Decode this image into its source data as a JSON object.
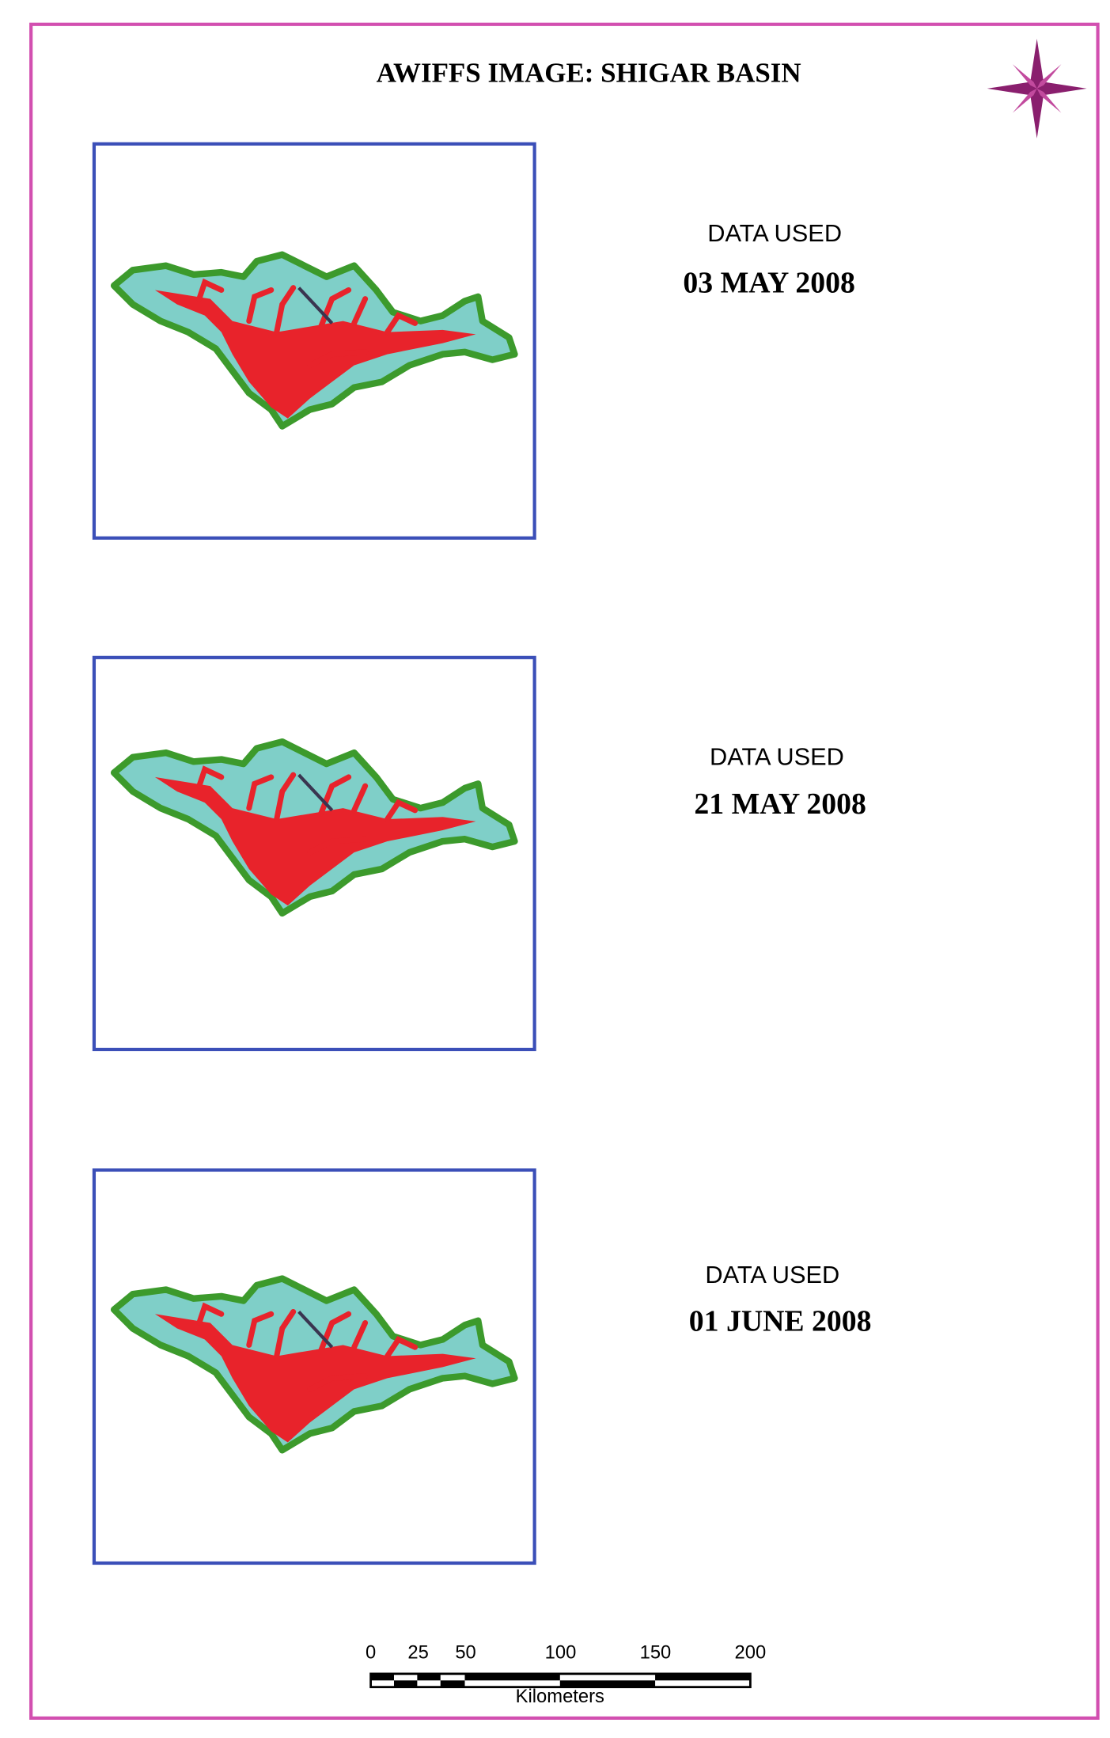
{
  "header": {
    "title": "AWIFFS IMAGE: SHIGAR BASIN"
  },
  "panels": [
    {
      "label": "DATA USED",
      "date": "03 MAY 2008"
    },
    {
      "label": "DATA USED",
      "date": "21 MAY 2008"
    },
    {
      "label": "DATA USED",
      "date": "01 JUNE 2008"
    }
  ],
  "scale_bar": {
    "ticks": [
      0,
      25,
      50,
      100,
      150,
      200
    ],
    "unit": "Kilometers"
  }
}
